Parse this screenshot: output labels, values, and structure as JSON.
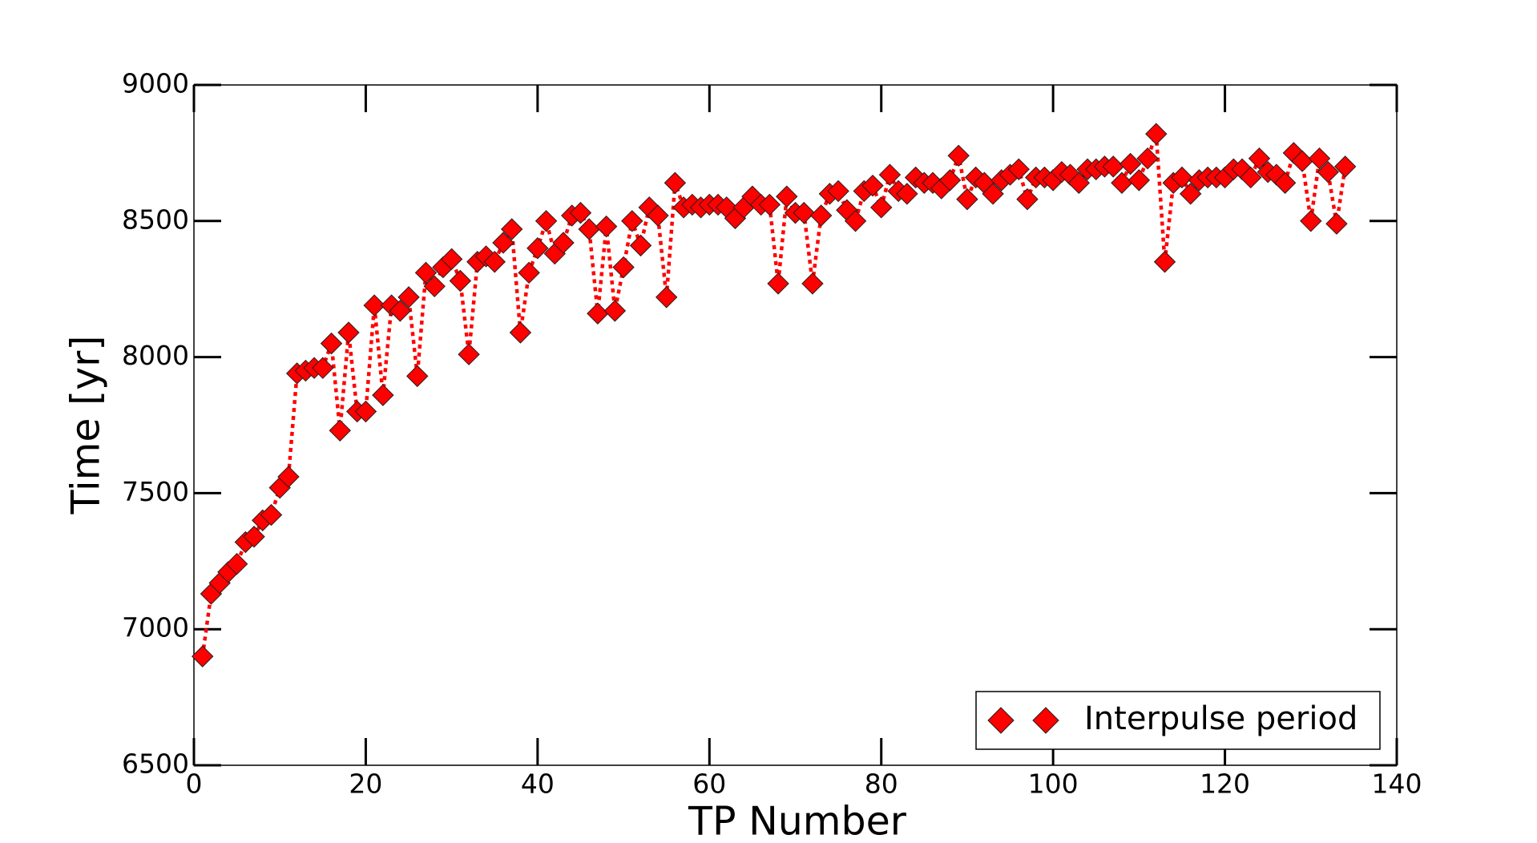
{
  "chart_data": {
    "type": "line",
    "xlabel": "TP Number",
    "ylabel": "Time [yr]",
    "x": [
      1,
      2,
      3,
      4,
      5,
      6,
      7,
      8,
      9,
      10,
      11,
      12,
      13,
      14,
      15,
      16,
      17,
      18,
      19,
      20,
      21,
      22,
      23,
      24,
      25,
      26,
      27,
      28,
      29,
      30,
      31,
      32,
      33,
      34,
      35,
      36,
      37,
      38,
      39,
      40,
      41,
      42,
      43,
      44,
      45,
      46,
      47,
      48,
      49,
      50,
      51,
      52,
      53,
      54,
      55,
      56,
      57,
      58,
      59,
      60,
      61,
      62,
      63,
      64,
      65,
      66,
      67,
      68,
      69,
      70,
      71,
      72,
      73,
      74,
      75,
      76,
      77,
      78,
      79,
      80,
      81,
      82,
      83,
      84,
      85,
      86,
      87,
      88,
      89,
      90,
      91,
      92,
      93,
      94,
      95,
      96,
      97,
      98,
      99,
      100,
      101,
      102,
      103,
      104,
      105,
      106,
      107,
      108,
      109,
      110,
      111,
      112,
      113,
      114,
      115,
      116,
      117,
      118,
      119,
      120,
      121,
      122,
      123,
      124,
      125,
      126,
      127,
      128,
      129,
      130,
      131,
      132,
      133,
      134
    ],
    "series": [
      {
        "name": "Interpulse period",
        "color": "#ff0000",
        "values": [
          6900,
          7130,
          7170,
          7210,
          7240,
          7320,
          7340,
          7400,
          7420,
          7520,
          7560,
          7940,
          7950,
          7960,
          7960,
          8050,
          7730,
          8090,
          7800,
          7800,
          8190,
          7860,
          8190,
          8170,
          8220,
          7930,
          8310,
          8260,
          8330,
          8360,
          8280,
          8010,
          8350,
          8370,
          8350,
          8420,
          8470,
          8090,
          8310,
          8400,
          8500,
          8380,
          8420,
          8520,
          8530,
          8470,
          8160,
          8480,
          8170,
          8330,
          8500,
          8410,
          8550,
          8520,
          8220,
          8640,
          8550,
          8560,
          8550,
          8560,
          8560,
          8550,
          8510,
          8550,
          8590,
          8560,
          8560,
          8270,
          8590,
          8530,
          8530,
          8270,
          8520,
          8600,
          8610,
          8540,
          8500,
          8610,
          8630,
          8550,
          8670,
          8610,
          8600,
          8660,
          8640,
          8640,
          8620,
          8650,
          8740,
          8580,
          8660,
          8640,
          8600,
          8650,
          8670,
          8690,
          8580,
          8660,
          8660,
          8650,
          8680,
          8670,
          8640,
          8690,
          8690,
          8700,
          8700,
          8640,
          8710,
          8650,
          8730,
          8820,
          8350,
          8640,
          8660,
          8600,
          8650,
          8660,
          8660,
          8660,
          8690,
          8690,
          8660,
          8730,
          8680,
          8670,
          8640,
          8750,
          8720,
          8500,
          8730,
          8680,
          8490,
          8700
        ]
      }
    ],
    "xlim": [
      0,
      140
    ],
    "xticks": [
      0,
      20,
      40,
      60,
      80,
      100,
      120,
      140
    ],
    "ylim": [
      6500,
      9000
    ],
    "yticks": [
      6500,
      7000,
      7500,
      8000,
      8500,
      9000
    ],
    "legend": "lower right"
  }
}
